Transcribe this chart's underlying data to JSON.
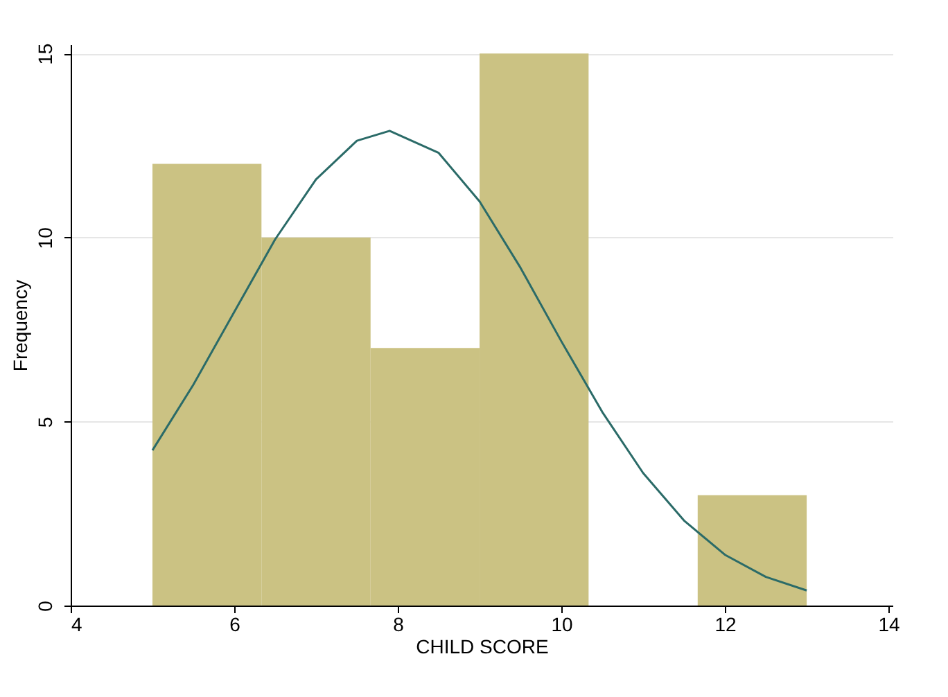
{
  "chart_data": {
    "type": "histogram",
    "xlabel": "CHILD SCORE",
    "ylabel": "Frequency",
    "bins": [
      5,
      6.333,
      7.667,
      9,
      10.333,
      11.667,
      13
    ],
    "values": [
      12,
      10,
      7,
      15,
      0,
      3
    ],
    "color": "#cbc283",
    "series": [
      {
        "type": "line",
        "color": "#2b6b68",
        "x": [
          5,
          5.5,
          6,
          6.5,
          7,
          7.5,
          7.9,
          8.5,
          9,
          9.5,
          10,
          10.5,
          11,
          11.5,
          12,
          12.5,
          13
        ],
        "values": [
          4.22,
          6.0,
          7.98,
          9.95,
          11.58,
          12.63,
          12.9,
          12.3,
          10.98,
          9.18,
          7.18,
          5.26,
          3.6,
          2.31,
          1.38,
          0.78,
          0.41
        ]
      }
    ],
    "xlim": [
      4,
      14.05
    ],
    "xticks": [
      4,
      6,
      8,
      10,
      12,
      14
    ],
    "ylim": [
      0,
      15.25
    ],
    "yticks": [
      0,
      5,
      10,
      15
    ],
    "grid": "y"
  }
}
